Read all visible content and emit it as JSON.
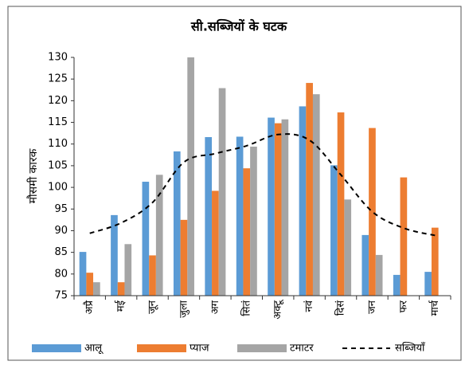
{
  "chart_data": {
    "type": "bar",
    "title": "सी.सब्जियों के घटक",
    "ylabel": "मौसमी कारक",
    "categories": [
      "अप्रै",
      "मई",
      "जून",
      "जुला",
      "अग",
      "सितं",
      "अक्टू",
      "नवं",
      "दिसं",
      "जन",
      "फर",
      "मार्च"
    ],
    "series": [
      {
        "name": "आलू",
        "color": "#5b9bd5",
        "type": "bar",
        "values": [
          85.1,
          93.6,
          101.3,
          108.3,
          111.6,
          111.7,
          116.1,
          118.7,
          105.1,
          89,
          79.8,
          80.5
        ]
      },
      {
        "name": "प्याज",
        "color": "#ed7d31",
        "type": "bar",
        "values": [
          80.3,
          78.1,
          84.3,
          92.5,
          99.2,
          104.4,
          114.8,
          124.1,
          117.3,
          113.7,
          102.3,
          90.7
        ]
      },
      {
        "name": "टमाटर",
        "color": "#a5a5a5",
        "type": "bar",
        "values": [
          78.1,
          86.9,
          102.9,
          130,
          122.9,
          109.4,
          115.7,
          121.5,
          97.2,
          84.4,
          75,
          75
        ]
      },
      {
        "name": "सब्जियाँ",
        "color": "#000000",
        "type": "line",
        "dashed": true,
        "values": [
          89.4,
          91.8,
          96.5,
          105.8,
          107.8,
          109.6,
          112.2,
          110.9,
          102.9,
          94.4,
          90.6,
          88.9
        ]
      }
    ],
    "ylim": [
      75,
      130
    ],
    "yticks": [
      75,
      80,
      85,
      90,
      95,
      100,
      105,
      110,
      115,
      120,
      125,
      130
    ],
    "grid": false,
    "legend": "bottom"
  }
}
